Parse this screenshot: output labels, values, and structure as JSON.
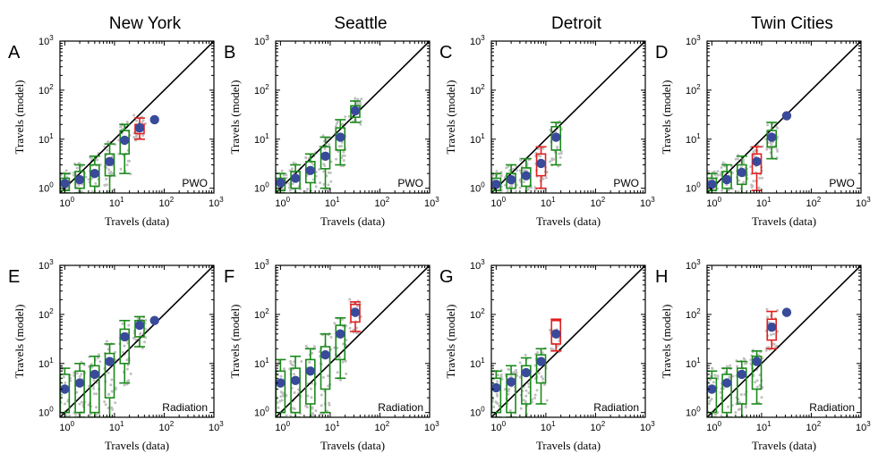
{
  "figure": {
    "col_titles": [
      "New York",
      "Seattle",
      "Detroit",
      "Twin Cities"
    ],
    "colors": {
      "scatter": "#c0c0c0",
      "box_ok": "#1a8a1a",
      "box_bad": "#e02020",
      "mean": "#3a4a9a",
      "diagonal": "#000000"
    }
  },
  "chart_data": [
    {
      "type": "scatter",
      "letter": "A",
      "city": "New York",
      "model": "PWO",
      "xlabel": "Travels (data)",
      "ylabel": "Travels (model)",
      "xlim": [
        0.8,
        1000
      ],
      "ylim": [
        0.8,
        1000
      ],
      "xticks": [
        "10^0",
        "10^1",
        "10^2",
        "10^3"
      ],
      "yticks": [
        "10^0",
        "10^1",
        "10^2",
        "10^3"
      ],
      "boxes": [
        {
          "x": 1,
          "q1": 0.9,
          "q3": 1.6,
          "lo": 0.8,
          "hi": 2.0,
          "mean": 1.25,
          "flag": "ok"
        },
        {
          "x": 2,
          "q1": 1.0,
          "q3": 2.2,
          "lo": 0.8,
          "hi": 3.0,
          "mean": 1.5,
          "flag": "ok"
        },
        {
          "x": 4,
          "q1": 1.1,
          "q3": 3.0,
          "lo": 0.8,
          "hi": 4.5,
          "mean": 2.0,
          "flag": "ok"
        },
        {
          "x": 8,
          "q1": 1.8,
          "q3": 5.0,
          "lo": 0.8,
          "hi": 8.0,
          "mean": 3.5,
          "flag": "ok"
        },
        {
          "x": 16,
          "q1": 5.0,
          "q3": 15.0,
          "lo": 2.0,
          "hi": 20.0,
          "mean": 9.5,
          "flag": "ok"
        },
        {
          "x": 32,
          "q1": 13.0,
          "q3": 20.0,
          "lo": 10.0,
          "hi": 27.0,
          "mean": 17.0,
          "flag": "bad"
        },
        {
          "x": 64,
          "mean": 25.0
        }
      ]
    },
    {
      "type": "scatter",
      "letter": "B",
      "city": "Seattle",
      "model": "PWO",
      "xlabel": "Travels (data)",
      "ylabel": "Travels (model)",
      "xlim": [
        0.8,
        1000
      ],
      "ylim": [
        0.8,
        1000
      ],
      "xticks": [
        "10^0",
        "10^1",
        "10^2",
        "10^3"
      ],
      "yticks": [
        "10^0",
        "10^1",
        "10^2",
        "10^3"
      ],
      "boxes": [
        {
          "x": 1,
          "q1": 0.9,
          "q3": 1.6,
          "lo": 0.8,
          "hi": 2.0,
          "mean": 1.3,
          "flag": "ok"
        },
        {
          "x": 2,
          "q1": 1.0,
          "q3": 2.2,
          "lo": 0.8,
          "hi": 3.0,
          "mean": 1.6,
          "flag": "ok"
        },
        {
          "x": 4,
          "q1": 1.3,
          "q3": 3.5,
          "lo": 0.8,
          "hi": 5.0,
          "mean": 2.3,
          "flag": "ok"
        },
        {
          "x": 8,
          "q1": 2.5,
          "q3": 7.0,
          "lo": 1.0,
          "hi": 11.0,
          "mean": 4.5,
          "flag": "ok"
        },
        {
          "x": 16,
          "q1": 6.0,
          "q3": 17.0,
          "lo": 3.0,
          "hi": 25.0,
          "mean": 11.0,
          "flag": "ok"
        },
        {
          "x": 32,
          "q1": 28.0,
          "q3": 48.0,
          "lo": 22.0,
          "hi": 60.0,
          "mean": 38.0,
          "flag": "ok"
        }
      ]
    },
    {
      "type": "scatter",
      "letter": "C",
      "city": "Detroit",
      "model": "PWO",
      "xlabel": "Travels (data)",
      "ylabel": "Travels (model)",
      "xlim": [
        0.8,
        1000
      ],
      "ylim": [
        0.8,
        1000
      ],
      "xticks": [
        "10^0",
        "10^1",
        "10^2",
        "10^3"
      ],
      "yticks": [
        "10^0",
        "10^1",
        "10^2",
        "10^3"
      ],
      "boxes": [
        {
          "x": 1,
          "q1": 0.9,
          "q3": 1.6,
          "lo": 0.8,
          "hi": 2.0,
          "mean": 1.2,
          "flag": "ok"
        },
        {
          "x": 2,
          "q1": 1.0,
          "q3": 2.0,
          "lo": 0.8,
          "hi": 3.0,
          "mean": 1.5,
          "flag": "ok"
        },
        {
          "x": 4,
          "q1": 1.1,
          "q3": 2.6,
          "lo": 0.8,
          "hi": 4.0,
          "mean": 1.8,
          "flag": "ok"
        },
        {
          "x": 8,
          "q1": 1.8,
          "q3": 5.0,
          "lo": 1.0,
          "hi": 7.0,
          "mean": 3.2,
          "flag": "bad"
        },
        {
          "x": 16,
          "q1": 6.0,
          "q3": 18.0,
          "lo": 3.0,
          "hi": 22.0,
          "mean": 11.0,
          "flag": "ok"
        }
      ]
    },
    {
      "type": "scatter",
      "letter": "D",
      "city": "Twin Cities",
      "model": "PWO",
      "xlabel": "Travels (data)",
      "ylabel": "Travels (model)",
      "xlim": [
        0.8,
        1000
      ],
      "ylim": [
        0.8,
        1000
      ],
      "xticks": [
        "10^0",
        "10^1",
        "10^2",
        "10^3"
      ],
      "yticks": [
        "10^0",
        "10^1",
        "10^2",
        "10^3"
      ],
      "boxes": [
        {
          "x": 1,
          "q1": 0.9,
          "q3": 1.6,
          "lo": 0.8,
          "hi": 2.0,
          "mean": 1.2,
          "flag": "ok"
        },
        {
          "x": 2,
          "q1": 1.0,
          "q3": 2.2,
          "lo": 0.8,
          "hi": 3.0,
          "mean": 1.5,
          "flag": "ok"
        },
        {
          "x": 4,
          "q1": 1.2,
          "q3": 3.0,
          "lo": 0.8,
          "hi": 4.5,
          "mean": 2.1,
          "flag": "ok"
        },
        {
          "x": 8,
          "q1": 2.0,
          "q3": 5.0,
          "lo": 0.9,
          "hi": 7.0,
          "mean": 3.5,
          "flag": "bad"
        },
        {
          "x": 16,
          "q1": 7.0,
          "q3": 15.0,
          "lo": 4.0,
          "hi": 22.0,
          "mean": 11.0,
          "flag": "ok"
        },
        {
          "x": 32,
          "mean": 30.0
        }
      ]
    },
    {
      "type": "scatter",
      "letter": "E",
      "city": "New York",
      "model": "Radiation",
      "xlabel": "Travels (data)",
      "ylabel": "Travels (model)",
      "xlim": [
        0.8,
        1000
      ],
      "ylim": [
        0.8,
        1000
      ],
      "xticks": [
        "10^0",
        "10^1",
        "10^2",
        "10^3"
      ],
      "yticks": [
        "10^0",
        "10^1",
        "10^2",
        "10^3"
      ],
      "boxes": [
        {
          "x": 1,
          "q1": 1.0,
          "q3": 6.0,
          "lo": 0.8,
          "hi": 8.0,
          "mean": 3.0,
          "flag": "ok"
        },
        {
          "x": 2,
          "q1": 1.0,
          "q3": 7.0,
          "lo": 0.8,
          "hi": 10.0,
          "mean": 4.0,
          "flag": "ok"
        },
        {
          "x": 4,
          "q1": 1.0,
          "q3": 9.0,
          "lo": 0.8,
          "hi": 14.0,
          "mean": 6.0,
          "flag": "ok"
        },
        {
          "x": 8,
          "q1": 2.0,
          "q3": 16.0,
          "lo": 0.8,
          "hi": 25.0,
          "mean": 11.0,
          "flag": "ok"
        },
        {
          "x": 16,
          "q1": 10.0,
          "q3": 50.0,
          "lo": 4.0,
          "hi": 75.0,
          "mean": 35.0,
          "flag": "ok"
        },
        {
          "x": 32,
          "q1": 35.0,
          "q3": 75.0,
          "lo": 22.0,
          "hi": 90.0,
          "mean": 60.0,
          "flag": "ok"
        },
        {
          "x": 64,
          "mean": 75.0
        }
      ]
    },
    {
      "type": "scatter",
      "letter": "F",
      "city": "Seattle",
      "model": "Radiation",
      "xlabel": "Travels (data)",
      "ylabel": "Travels (model)",
      "xlim": [
        0.8,
        1000
      ],
      "ylim": [
        0.8,
        1000
      ],
      "xticks": [
        "10^0",
        "10^1",
        "10^2",
        "10^3"
      ],
      "yticks": [
        "10^0",
        "10^1",
        "10^2",
        "10^3"
      ],
      "boxes": [
        {
          "x": 1,
          "q1": 1.0,
          "q3": 7.0,
          "lo": 0.8,
          "hi": 12.0,
          "mean": 4.0,
          "flag": "ok"
        },
        {
          "x": 2,
          "q1": 1.0,
          "q3": 8.0,
          "lo": 0.8,
          "hi": 14.0,
          "mean": 4.5,
          "flag": "ok"
        },
        {
          "x": 4,
          "q1": 1.5,
          "q3": 12.0,
          "lo": 0.8,
          "hi": 20.0,
          "mean": 7.0,
          "flag": "ok"
        },
        {
          "x": 8,
          "q1": 3.0,
          "q3": 22.0,
          "lo": 1.0,
          "hi": 40.0,
          "mean": 15.0,
          "flag": "ok"
        },
        {
          "x": 16,
          "q1": 12.0,
          "q3": 60.0,
          "lo": 5.0,
          "hi": 85.0,
          "mean": 40.0,
          "flag": "ok"
        },
        {
          "x": 32,
          "q1": 70.0,
          "q3": 160.0,
          "lo": 45.0,
          "hi": 180.0,
          "mean": 110.0,
          "flag": "bad"
        }
      ]
    },
    {
      "type": "scatter",
      "letter": "G",
      "city": "Detroit",
      "model": "Radiation",
      "xlabel": "Travels (data)",
      "ylabel": "Travels (model)",
      "xlim": [
        0.8,
        1000
      ],
      "ylim": [
        0.8,
        1000
      ],
      "xticks": [
        "10^0",
        "10^1",
        "10^2",
        "10^3"
      ],
      "yticks": [
        "10^0",
        "10^1",
        "10^2",
        "10^3"
      ],
      "boxes": [
        {
          "x": 1,
          "q1": 1.0,
          "q3": 5.0,
          "lo": 0.8,
          "hi": 7.0,
          "mean": 3.2,
          "flag": "ok"
        },
        {
          "x": 2,
          "q1": 1.0,
          "q3": 6.0,
          "lo": 0.8,
          "hi": 9.0,
          "mean": 4.2,
          "flag": "ok"
        },
        {
          "x": 4,
          "q1": 1.5,
          "q3": 9.0,
          "lo": 0.8,
          "hi": 13.0,
          "mean": 6.5,
          "flag": "ok"
        },
        {
          "x": 8,
          "q1": 4.0,
          "q3": 15.0,
          "lo": 1.5,
          "hi": 20.0,
          "mean": 11.0,
          "flag": "ok"
        },
        {
          "x": 16,
          "q1": 25.0,
          "q3": 75.0,
          "lo": 18.0,
          "hi": 80.0,
          "mean": 40.0,
          "flag": "bad"
        }
      ]
    },
    {
      "type": "scatter",
      "letter": "H",
      "city": "Twin Cities",
      "model": "Radiation",
      "xlabel": "Travels (data)",
      "ylabel": "Travels (model)",
      "xlim": [
        0.8,
        1000
      ],
      "ylim": [
        0.8,
        1000
      ],
      "xticks": [
        "10^0",
        "10^1",
        "10^2",
        "10^3"
      ],
      "yticks": [
        "10^0",
        "10^1",
        "10^2",
        "10^3"
      ],
      "boxes": [
        {
          "x": 1,
          "q1": 1.0,
          "q3": 5.0,
          "lo": 0.8,
          "hi": 7.0,
          "mean": 3.0,
          "flag": "ok"
        },
        {
          "x": 2,
          "q1": 1.0,
          "q3": 6.0,
          "lo": 0.8,
          "hi": 8.0,
          "mean": 4.0,
          "flag": "ok"
        },
        {
          "x": 4,
          "q1": 1.5,
          "q3": 8.0,
          "lo": 0.8,
          "hi": 11.0,
          "mean": 6.0,
          "flag": "ok"
        },
        {
          "x": 8,
          "q1": 3.0,
          "q3": 14.0,
          "lo": 1.5,
          "hi": 18.0,
          "mean": 11.0,
          "flag": "ok"
        },
        {
          "x": 16,
          "q1": 30.0,
          "q3": 80.0,
          "lo": 20.0,
          "hi": 115.0,
          "mean": 55.0,
          "flag": "bad"
        },
        {
          "x": 32,
          "mean": 110.0
        }
      ]
    }
  ]
}
